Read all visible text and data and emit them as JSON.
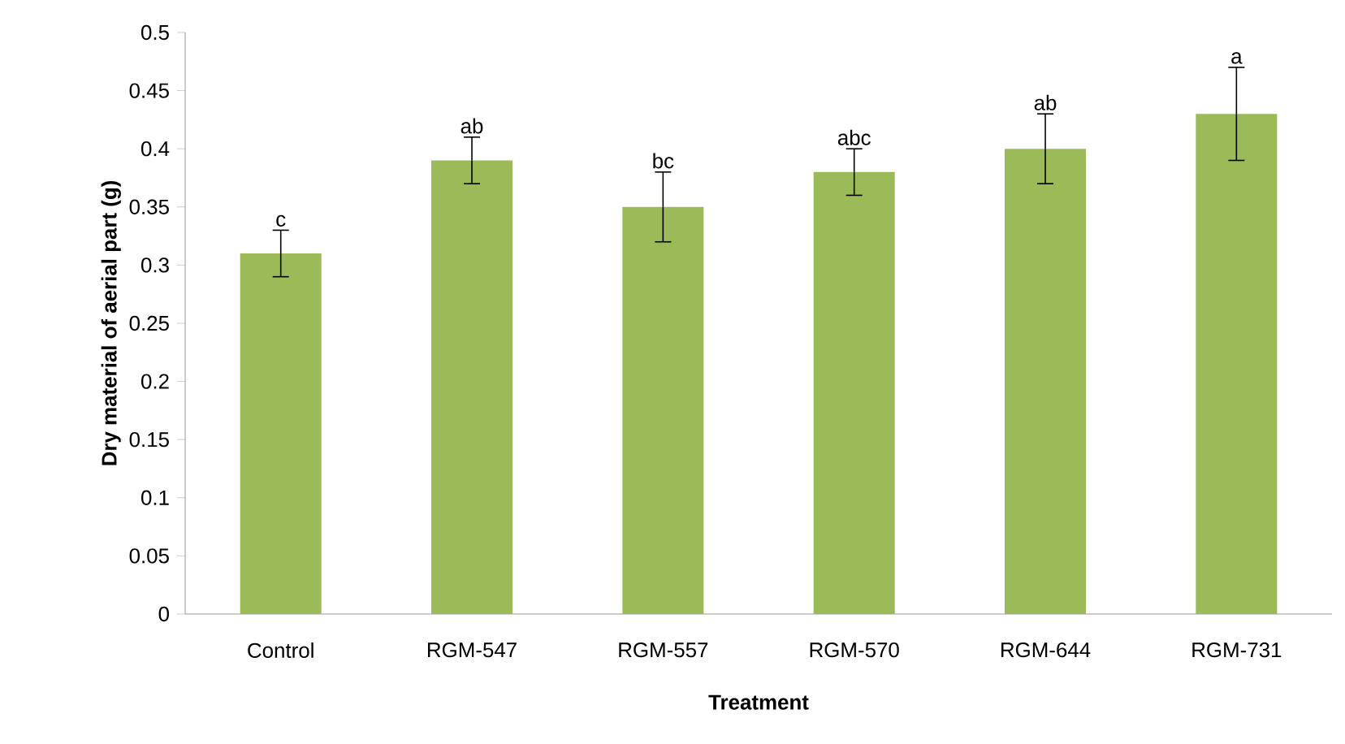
{
  "chart_data": {
    "type": "bar",
    "xlabel": "Treatment",
    "ylabel": "Dry material of aerial part (g)",
    "categories": [
      "Control",
      "RGM-547",
      "RGM-557",
      "RGM-570",
      "RGM-644",
      "RGM-731"
    ],
    "values": [
      0.31,
      0.39,
      0.35,
      0.38,
      0.4,
      0.43
    ],
    "errors": [
      0.02,
      0.02,
      0.03,
      0.02,
      0.03,
      0.04
    ],
    "color": "#9bbb59",
    "ylim": [
      0,
      0.5
    ],
    "yticks": [
      0,
      0.05,
      0.1,
      0.15,
      0.2,
      0.25,
      0.3,
      0.35,
      0.4,
      0.45,
      0.5
    ],
    "annotations": [
      {
        "text": "c",
        "x": "Control",
        "y": 0.33
      },
      {
        "text": "ab",
        "x": "RGM-547",
        "y": 0.41
      },
      {
        "text": "bc",
        "x": "RGM-557",
        "y": 0.38
      },
      {
        "text": "abc",
        "x": "RGM-570",
        "y": 0.4
      },
      {
        "text": "ab",
        "x": "RGM-644",
        "y": 0.43
      },
      {
        "text": "a",
        "x": "RGM-731",
        "y": 0.47
      }
    ]
  }
}
